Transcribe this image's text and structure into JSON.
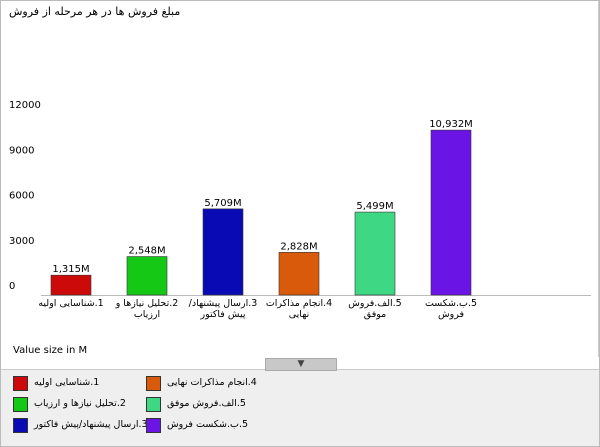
{
  "chart_data": {
    "type": "bar",
    "title": "مبلغ فروش ها در هر مرحله از فروش",
    "categories": [
      "1.شناسایی اولیه",
      "2.تحلیل نیازها و ارزیاب",
      "3.ارسال پیشنهاد/پیش فاکتور",
      "4.انجام مذاکرات نهایی",
      "5.الف.فروش موفق",
      "5.ب.شکست فروش"
    ],
    "values": [
      1315,
      2548,
      5709,
      2828,
      5499,
      10932
    ],
    "value_labels": [
      "1,315M",
      "2,548M",
      "5,709M",
      "2,828M",
      "5,499M",
      "10,932M"
    ],
    "colors": [
      "#cc0a0a",
      "#16c816",
      "#0a0ab4",
      "#d85a0a",
      "#3ed884",
      "#6a14e6"
    ],
    "ylim": [
      0,
      12000
    ],
    "yticks": [
      0,
      3000,
      6000,
      9000,
      12000
    ],
    "value_axis_note": "Value size in M",
    "legend": "bottom"
  }
}
